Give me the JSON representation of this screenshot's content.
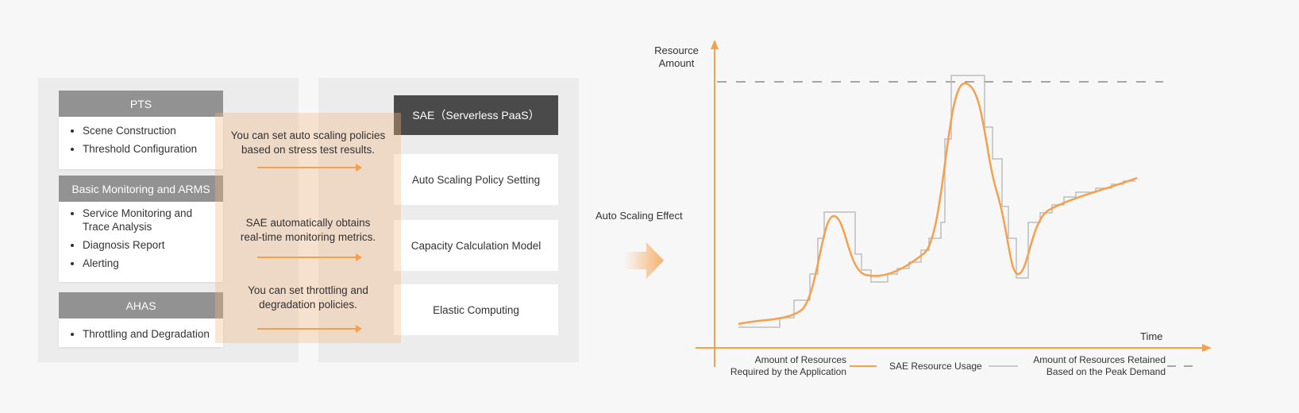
{
  "left": {
    "groups": [
      {
        "title": "PTS",
        "items": [
          "Scene Construction",
          "Threshold Configuration"
        ]
      },
      {
        "title": "Basic Monitoring and ARMS",
        "items": [
          "Service Monitoring and Trace Analysis",
          "Diagnosis Report",
          "Alerting"
        ]
      },
      {
        "title": "AHAS",
        "items": [
          "Throttling and Degradation"
        ]
      }
    ]
  },
  "messages": [
    "You can set auto scaling policies based on stress test results.",
    "SAE automatically obtains real-time monitoring metrics.",
    "You can set throttling and degradation policies."
  ],
  "right": {
    "title": "SAE（Serverless PaaS）",
    "boxes": [
      "Auto Scaling Policy Setting",
      "Capacity Calculation Model",
      "Elastic Computing"
    ]
  },
  "effect_label": "Auto Scaling Effect",
  "chart": {
    "y_label": "Resource Amount",
    "x_label": "Time",
    "legend": [
      "Amount of Resources Required by the Application",
      "SAE Resource Usage",
      "Amount of Resources Retained Based on the Peak Demand"
    ],
    "colors": {
      "required": "#f5a04c",
      "usage": "#bdbdbd",
      "peak": "#555555",
      "axis": "#f5a04c"
    }
  }
}
